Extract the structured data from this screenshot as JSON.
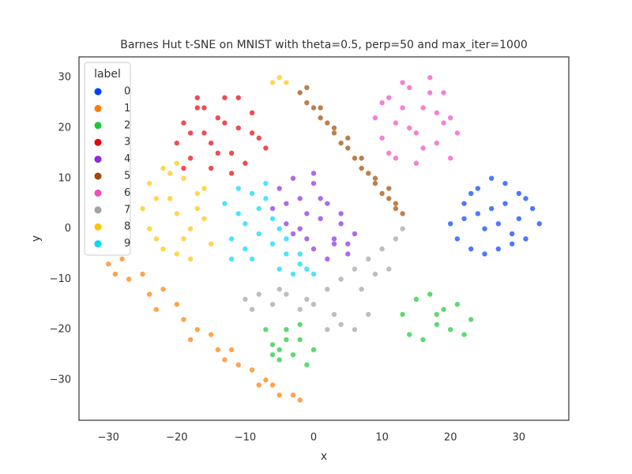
{
  "chart_data": {
    "type": "scatter",
    "title": "Barnes Hut t-SNE on MNIST with theta=0.5, perp=50 and max_iter=1000",
    "x_label": "x",
    "y_label": "y",
    "legend_title": "label",
    "legend_position": "upper left",
    "xlim": [
      -34.3,
      37.3
    ],
    "ylim": [
      -38,
      34.1
    ],
    "xticks": [
      {
        "value": -30,
        "label": "−30"
      },
      {
        "value": -20,
        "label": "−20"
      },
      {
        "value": -10,
        "label": "−10"
      },
      0,
      10,
      20,
      30
    ],
    "yticks": [
      {
        "value": -30,
        "label": "−30"
      },
      {
        "value": -20,
        "label": "−20"
      },
      {
        "value": -10,
        "label": "−10"
      },
      0,
      10,
      20,
      30
    ],
    "series": [
      {
        "name": "0",
        "color": "#023eff",
        "x": [
          20,
          22,
          24,
          26,
          28,
          30,
          32,
          33,
          21,
          23,
          25,
          27,
          29,
          31,
          22,
          24,
          26,
          28,
          30,
          25,
          27,
          29,
          23,
          31
        ],
        "y": [
          1,
          5,
          8,
          10,
          9,
          7,
          4,
          1,
          -2,
          -4,
          -5,
          -4,
          -3,
          -2,
          2,
          3,
          4,
          5,
          2,
          0,
          1,
          -1,
          7,
          6
        ]
      },
      {
        "name": "1",
        "color": "#ff7c00",
        "x": [
          -30,
          -28,
          -27,
          -25,
          -24,
          -22,
          -20,
          -19,
          -17,
          -15,
          -14,
          -12,
          -11,
          -9,
          -8,
          -6,
          -5,
          -3,
          -2,
          -29,
          -23,
          -18,
          -13,
          -7
        ],
        "y": [
          -7,
          -6,
          -10,
          -9,
          -13,
          -12,
          -15,
          -18,
          -20,
          -21,
          -24,
          -24,
          -27,
          -28,
          -31,
          -31,
          -33,
          -33,
          -34,
          -9,
          -16,
          -22,
          -26,
          -30
        ]
      },
      {
        "name": "2",
        "color": "#1ac938",
        "x": [
          -7,
          -6,
          -5,
          -4,
          -3,
          -2,
          -1,
          0,
          -6,
          -4,
          -2,
          -5,
          13,
          15,
          17,
          19,
          21,
          23,
          14,
          16,
          18,
          20,
          22,
          18
        ],
        "y": [
          -20,
          -23,
          -26,
          -20,
          -25,
          -22,
          -27,
          -24,
          -25,
          -22,
          -19,
          -24,
          -17,
          -14,
          -13,
          -16,
          -15,
          -18,
          -21,
          -22,
          -19,
          -20,
          -21,
          -17
        ]
      },
      {
        "name": "3",
        "color": "#e8000b",
        "x": [
          -20,
          -19,
          -18,
          -17,
          -16,
          -15,
          -14,
          -13,
          -12,
          -11,
          -10,
          -9,
          -8,
          -7,
          -19,
          -17,
          -15,
          -13,
          -11,
          -9,
          -16,
          -12,
          -14,
          -18
        ],
        "y": [
          17,
          21,
          14,
          24,
          19,
          12,
          22,
          26,
          15,
          20,
          13,
          23,
          18,
          16,
          12,
          26,
          17,
          21,
          26,
          19,
          24,
          11,
          15,
          19
        ]
      },
      {
        "name": "4",
        "color": "#8b2be2",
        "x": [
          -6,
          -5,
          -4,
          -3,
          -2,
          -1,
          0,
          1,
          2,
          3,
          4,
          5,
          6,
          -4,
          -2,
          0,
          2,
          4,
          -3,
          -1,
          1,
          3,
          5,
          0
        ],
        "y": [
          4,
          8,
          1,
          10,
          6,
          -2,
          9,
          2,
          5,
          -3,
          1,
          -5,
          -1,
          5,
          0,
          -4,
          -6,
          3,
          -1,
          3,
          6,
          -2,
          -3,
          11
        ]
      },
      {
        "name": "5",
        "color": "#9f4800",
        "x": [
          -2,
          -1,
          0,
          1,
          2,
          3,
          4,
          5,
          6,
          7,
          8,
          9,
          10,
          11,
          12,
          13,
          -1,
          1,
          3,
          5,
          7,
          9,
          11,
          12
        ],
        "y": [
          27,
          25,
          24,
          22,
          21,
          19,
          17,
          16,
          14,
          12,
          11,
          9,
          7,
          6,
          4,
          3,
          28,
          24,
          20,
          18,
          14,
          10,
          8,
          5
        ]
      },
      {
        "name": "6",
        "color": "#f14cc1",
        "x": [
          9,
          10,
          11,
          12,
          13,
          14,
          15,
          16,
          17,
          18,
          19,
          20,
          21,
          10,
          12,
          14,
          16,
          18,
          20,
          11,
          13,
          15,
          17,
          19
        ],
        "y": [
          22,
          18,
          26,
          14,
          29,
          20,
          13,
          24,
          30,
          17,
          27,
          22,
          19,
          25,
          21,
          28,
          16,
          23,
          14,
          15,
          24,
          19,
          27,
          21
        ]
      },
      {
        "name": "7",
        "color": "#a3a3a3",
        "x": [
          -10,
          -8,
          -6,
          -4,
          -2,
          0,
          2,
          4,
          6,
          8,
          10,
          12,
          13,
          -9,
          -5,
          -1,
          3,
          7,
          11,
          4,
          6,
          8,
          2,
          9
        ],
        "y": [
          -14,
          -13,
          -15,
          -13,
          -16,
          -15,
          -12,
          -10,
          -8,
          -6,
          -4,
          -2,
          0,
          -16,
          -12,
          -14,
          -17,
          -12,
          -8,
          -19,
          -20,
          -17,
          -20,
          -9
        ]
      },
      {
        "name": "8",
        "color": "#ffc400",
        "x": [
          -25,
          -24,
          -23,
          -22,
          -21,
          -20,
          -19,
          -18,
          -17,
          -16,
          -15,
          -24,
          -22,
          -20,
          -18,
          -16,
          -23,
          -21,
          -19,
          -17,
          -6,
          -5,
          -4,
          -20
        ],
        "y": [
          4,
          9,
          -2,
          12,
          6,
          -5,
          10,
          0,
          7,
          2,
          -3,
          0,
          -4,
          3,
          -6,
          8,
          6,
          11,
          -2,
          4,
          29,
          30,
          29,
          13
        ]
      },
      {
        "name": "9",
        "color": "#00d7ff",
        "x": [
          -13,
          -12,
          -11,
          -10,
          -9,
          -8,
          -7,
          -6,
          -5,
          -4,
          -3,
          -2,
          -1,
          0,
          -12,
          -10,
          -8,
          -6,
          -4,
          -2,
          -9,
          -7,
          -11,
          -5
        ],
        "y": [
          5,
          -2,
          8,
          1,
          -6,
          4,
          9,
          -3,
          -8,
          -5,
          -9,
          -7,
          -8,
          -9,
          -6,
          -4,
          -1,
          2,
          -2,
          -5,
          7,
          6,
          3,
          0
        ]
      }
    ]
  }
}
